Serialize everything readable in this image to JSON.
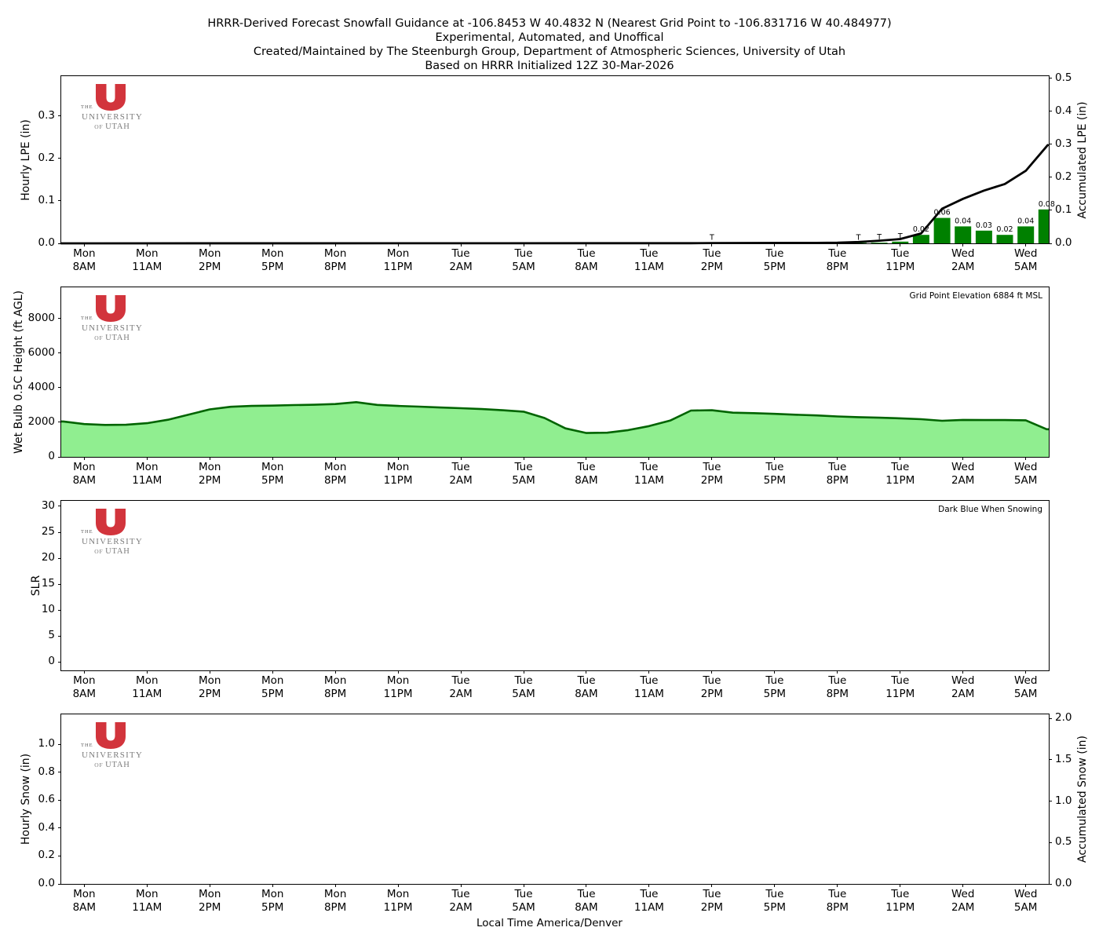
{
  "title": {
    "line1": "HRRR-Derived Forecast Snowfall Guidance at -106.8453 W 40.4832 N (Nearest Grid Point to -106.831716 W 40.484977)",
    "line2": "Experimental, Automated, and Unoffical",
    "line3": "Created/Maintained by The Steenburgh Group, Department of Atmospheric Sciences, University of Utah",
    "line4": "Based on HRRR Initialized 12Z 30-Mar-2026"
  },
  "logo": {
    "the": "THE",
    "university": "UNIVERSITY",
    "of": "OF",
    "utah": "UTAH",
    "u_color": "#d2343c"
  },
  "xaxis": {
    "label": "Local Time America/Denver",
    "hours_range": [
      -0.1,
      47.1
    ],
    "tick_hours": [
      1,
      4,
      7,
      10,
      13,
      16,
      19,
      22,
      25,
      28,
      31,
      34,
      37,
      40,
      43,
      46
    ],
    "tick_labels": [
      {
        "day": "Mon",
        "time": "8AM"
      },
      {
        "day": "Mon",
        "time": "11AM"
      },
      {
        "day": "Mon",
        "time": "2PM"
      },
      {
        "day": "Mon",
        "time": "5PM"
      },
      {
        "day": "Mon",
        "time": "8PM"
      },
      {
        "day": "Mon",
        "time": "11PM"
      },
      {
        "day": "Tue",
        "time": "2AM"
      },
      {
        "day": "Tue",
        "time": "5AM"
      },
      {
        "day": "Tue",
        "time": "8AM"
      },
      {
        "day": "Tue",
        "time": "11AM"
      },
      {
        "day": "Tue",
        "time": "2PM"
      },
      {
        "day": "Tue",
        "time": "5PM"
      },
      {
        "day": "Tue",
        "time": "8PM"
      },
      {
        "day": "Tue",
        "time": "11PM"
      },
      {
        "day": "Wed",
        "time": "2AM"
      },
      {
        "day": "Wed",
        "time": "5AM"
      }
    ]
  },
  "chart_data": [
    {
      "name": "hourly-lpe",
      "type": "bar+line",
      "ylabel_left": "Hourly LPE (in)",
      "ylabel_right": "Accumulated LPE (in)",
      "ylim_left": [
        0,
        0.394
      ],
      "yticks_left": [
        "0.0",
        "0.1",
        "0.2",
        "0.3"
      ],
      "ylim_right": [
        0,
        0.507
      ],
      "yticks_right": [
        "0.0",
        "0.1",
        "0.2",
        "0.3",
        "0.4",
        "0.5"
      ],
      "bar_color": "#008000",
      "line_color": "#000000",
      "bars": [
        {
          "hour": 31,
          "value": 0.0006,
          "label": "T"
        },
        {
          "hour": 38,
          "value": 0.001,
          "label": "T"
        },
        {
          "hour": 39,
          "value": 0.0015,
          "label": "T"
        },
        {
          "hour": 40,
          "value": 0.004,
          "label": "T"
        },
        {
          "hour": 41,
          "value": 0.02,
          "label": "0.02"
        },
        {
          "hour": 42,
          "value": 0.06,
          "label": "0.06"
        },
        {
          "hour": 43,
          "value": 0.04,
          "label": "0.04"
        },
        {
          "hour": 44,
          "value": 0.03,
          "label": "0.03"
        },
        {
          "hour": 45,
          "value": 0.02,
          "label": "0.02"
        },
        {
          "hour": 46,
          "value": 0.04,
          "label": "0.04"
        },
        {
          "hour": 47,
          "value": 0.08,
          "label": "0.08"
        }
      ],
      "accum_line": [
        [
          -0.1,
          0
        ],
        [
          30,
          0.0005
        ],
        [
          31,
          0.001
        ],
        [
          36,
          0.0015
        ],
        [
          37,
          0.002
        ],
        [
          38,
          0.004
        ],
        [
          39,
          0.008
        ],
        [
          40,
          0.013
        ],
        [
          41,
          0.03
        ],
        [
          42,
          0.105
        ],
        [
          43,
          0.135
        ],
        [
          44,
          0.16
        ],
        [
          45,
          0.18
        ],
        [
          46,
          0.22
        ],
        [
          47.05,
          0.298
        ]
      ]
    },
    {
      "name": "wet-bulb-height",
      "type": "area",
      "ylabel_left": "Wet Bulb 0.5C Height (ft AGL)",
      "annotation": "Grid Point Elevation 6884 ft MSL",
      "ylim_left": [
        0,
        9818
      ],
      "yticks_left": [
        "0",
        "2000",
        "4000",
        "6000",
        "8000"
      ],
      "fill_color": "#90ee90",
      "line_color": "#006400",
      "values": [
        2050,
        1900,
        1850,
        1860,
        1950,
        2150,
        2450,
        2750,
        2900,
        2950,
        2970,
        3000,
        3020,
        3060,
        3170,
        3010,
        2950,
        2910,
        2860,
        2820,
        2770,
        2700,
        2620,
        2250,
        1650,
        1380,
        1400,
        1550,
        1780,
        2100,
        2680,
        2700,
        2560,
        2530,
        2490,
        2440,
        2400,
        2340,
        2300,
        2270,
        2230,
        2180,
        2090,
        2140,
        2130,
        2130,
        2120,
        1600
      ]
    },
    {
      "name": "slr",
      "type": "empty",
      "ylabel_left": "SLR",
      "annotation": "Dark Blue When Snowing",
      "ylim_left": [
        -1.6,
        31.05
      ],
      "yticks_left": [
        "0",
        "5",
        "10",
        "15",
        "20",
        "25",
        "30"
      ]
    },
    {
      "name": "hourly-snow",
      "type": "empty",
      "ylabel_left": "Hourly Snow (in)",
      "ylabel_right": "Accumulated Snow (in)",
      "ylim_left": [
        0,
        1.215
      ],
      "yticks_left": [
        "0.0",
        "0.2",
        "0.4",
        "0.6",
        "0.8",
        "1.0"
      ],
      "ylim_right": [
        0,
        2.05
      ],
      "yticks_right": [
        "0.0",
        "0.5",
        "1.0",
        "1.5",
        "2.0"
      ]
    }
  ]
}
